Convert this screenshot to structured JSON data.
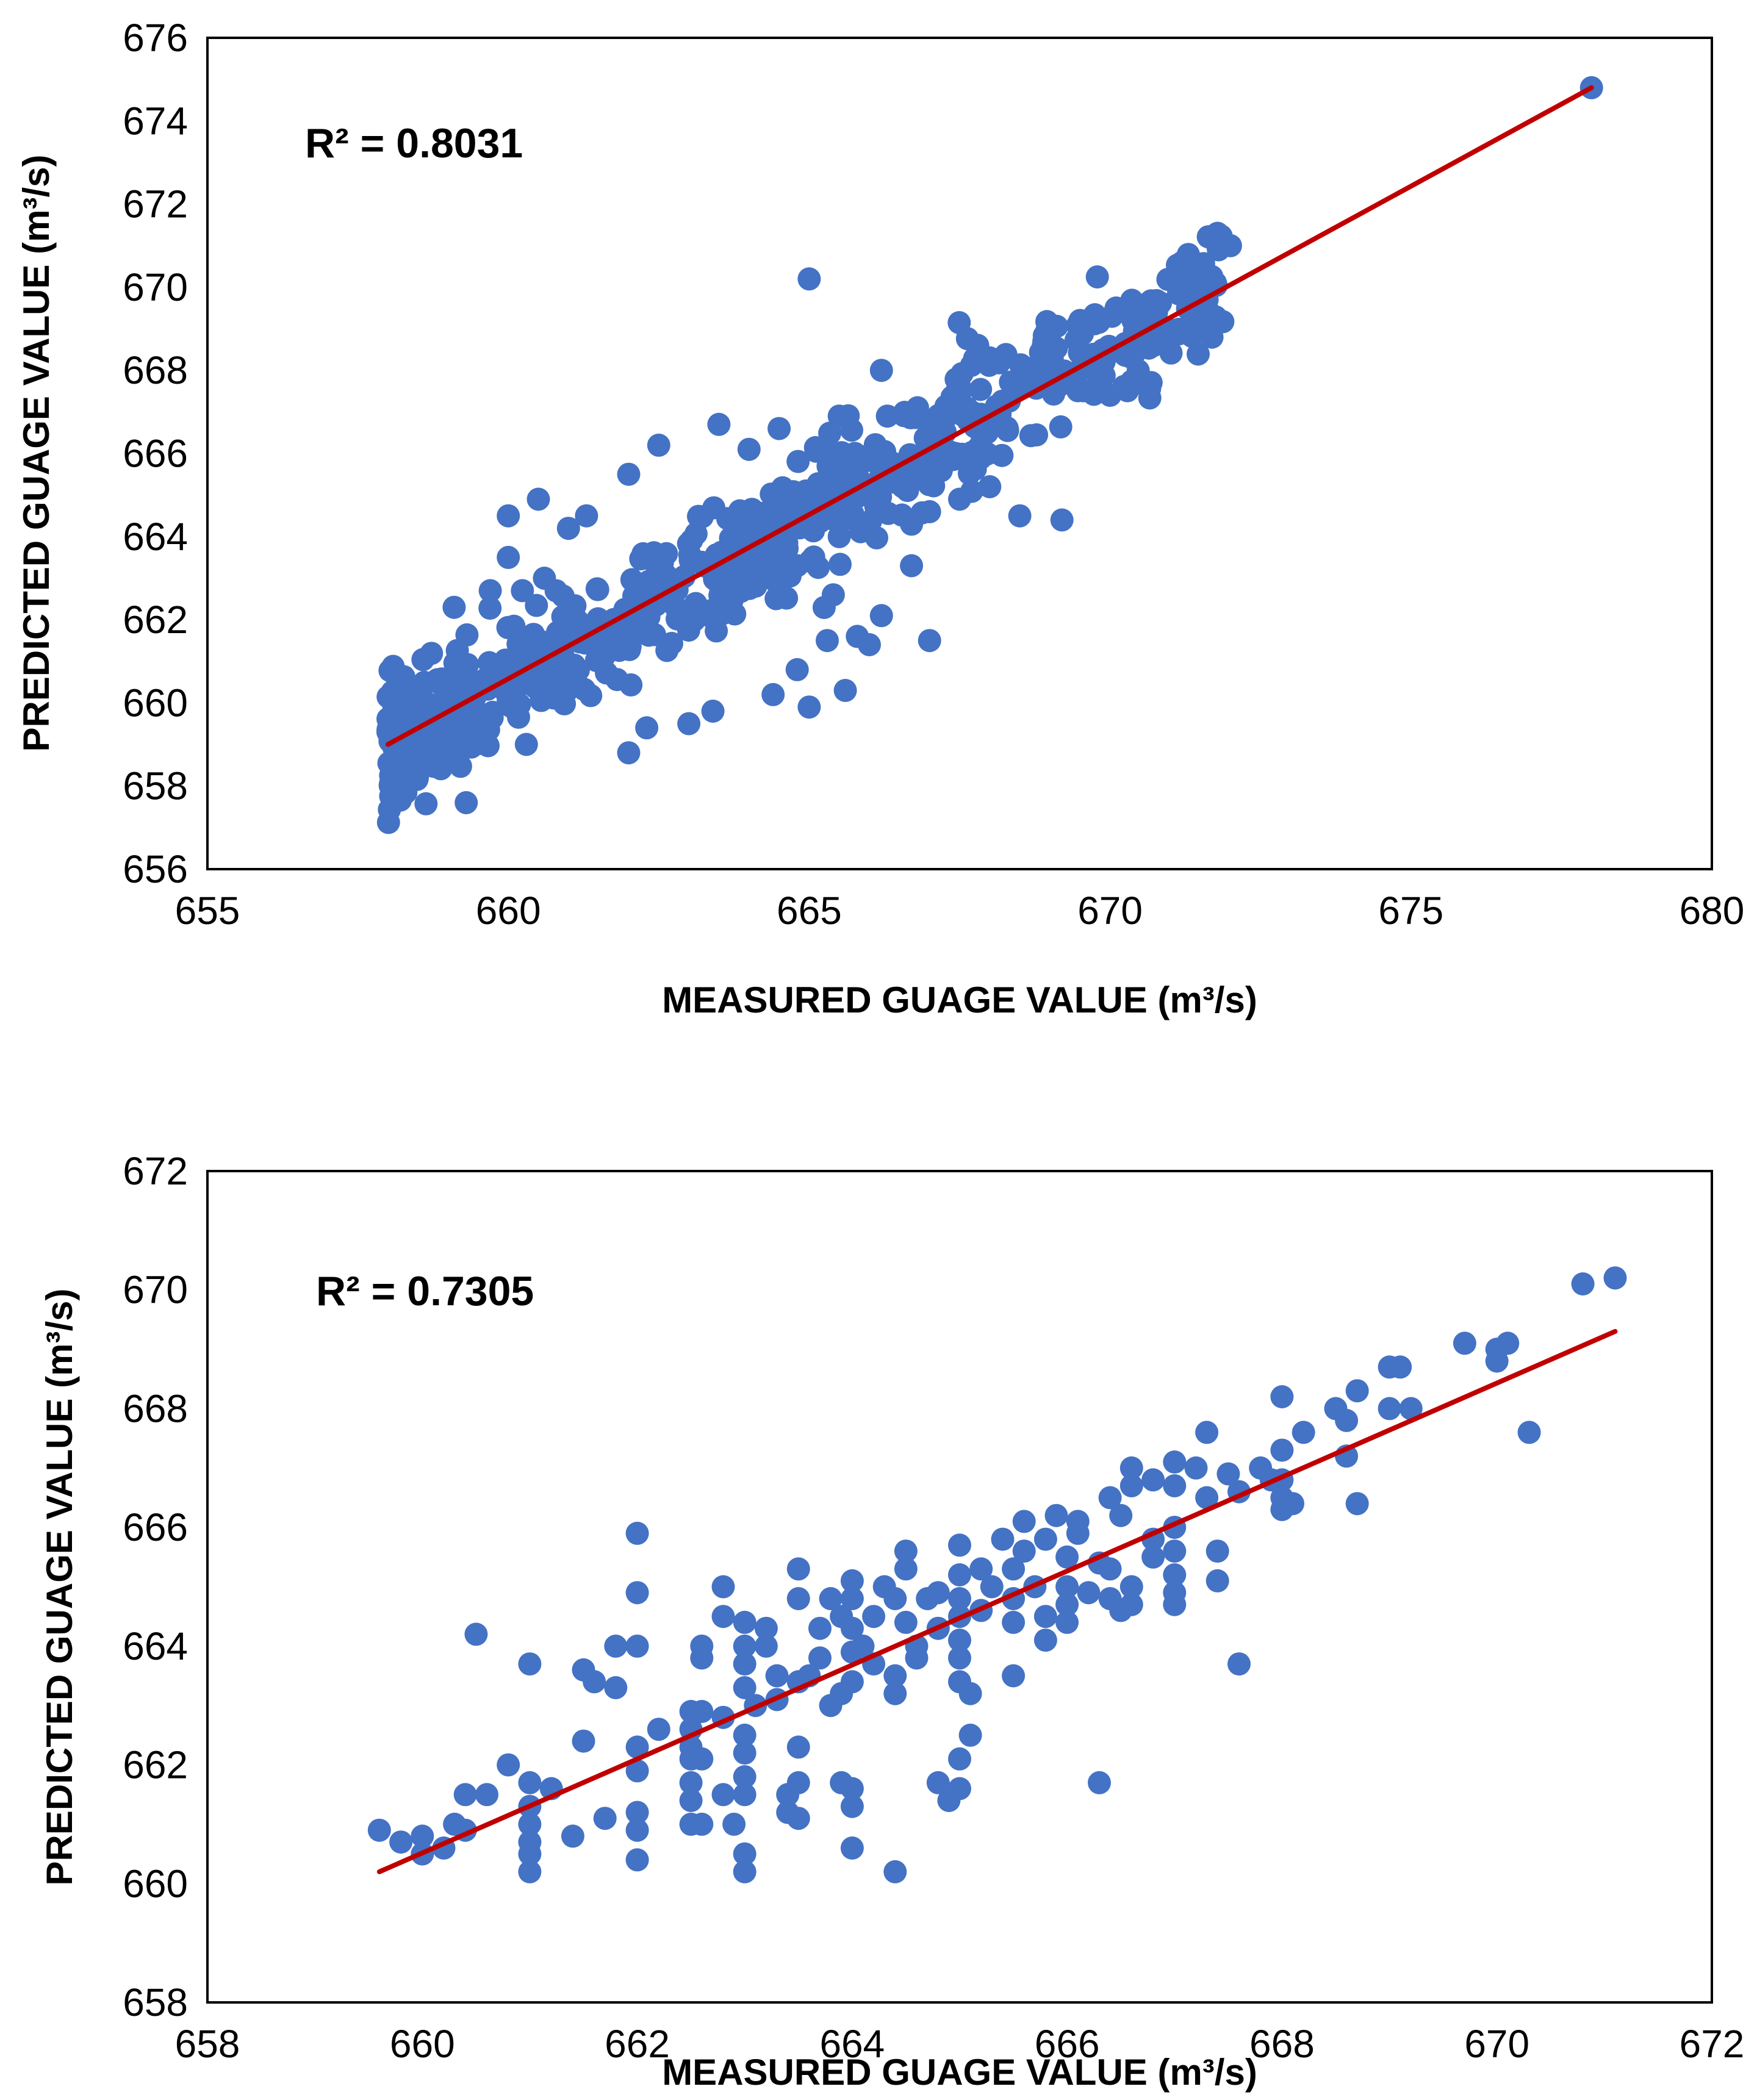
{
  "chart_data": [
    {
      "type": "scatter",
      "title": "",
      "xlabel": "MEASURED GUAGE VALUE (m³/s)",
      "ylabel": "PREDICTED GUAGE VALUE (m³/s)",
      "xlim": [
        655,
        680
      ],
      "ylim": [
        656,
        676
      ],
      "xticks": [
        655,
        660,
        665,
        670,
        675,
        680
      ],
      "yticks": [
        656,
        658,
        660,
        662,
        664,
        666,
        668,
        670,
        672,
        674,
        676
      ],
      "r2_label": "R² = 0.8031",
      "trendline": {
        "x": [
          658.0,
          678.0
        ],
        "y": [
          659.0,
          674.8
        ]
      },
      "colors": {
        "points": "#4472C4",
        "trendline": "#C00000"
      },
      "grid": false,
      "cluster": {
        "n": 700,
        "x_range": [
          658.0,
          672.0
        ],
        "slope": 0.79,
        "intercept": 659.0,
        "x0": 658.0,
        "spread": 0.75,
        "seed": 7
      },
      "points": [
        [
          678.0,
          674.8
        ],
        [
          665.0,
          670.2
        ],
        [
          659.3,
          657.6
        ],
        [
          662.0,
          658.8
        ],
        [
          666.2,
          668.0
        ],
        [
          660.0,
          664.5
        ],
        [
          660.5,
          664.9
        ],
        [
          661.3,
          664.5
        ],
        [
          662.0,
          665.5
        ],
        [
          662.5,
          666.2
        ],
        [
          663.5,
          666.7
        ],
        [
          664.5,
          666.6
        ],
        [
          665.5,
          666.9
        ],
        [
          667.8,
          668.6
        ],
        [
          667.0,
          661.5
        ],
        [
          666.0,
          661.4
        ],
        [
          666.2,
          662.1
        ],
        [
          665.6,
          660.3
        ],
        [
          665.0,
          659.9
        ],
        [
          664.8,
          660.8
        ],
        [
          664.4,
          660.2
        ],
        [
          662.3,
          659.4
        ],
        [
          663.0,
          659.5
        ],
        [
          663.4,
          659.8
        ],
        [
          660.3,
          659.0
        ],
        [
          659.2,
          658.9
        ],
        [
          658.8,
          658.7
        ],
        [
          665.3,
          661.5
        ],
        [
          665.8,
          661.6
        ],
        [
          666.7,
          663.3
        ],
        [
          668.5,
          664.5
        ],
        [
          669.2,
          664.4
        ],
        [
          670.0,
          667.4
        ],
        [
          670.4,
          668.4
        ],
        [
          671.4,
          668.9
        ],
        [
          671.6,
          669.0
        ],
        [
          672.0,
          671.0
        ],
        [
          671.8,
          670.9
        ],
        [
          671.2,
          670.6
        ],
        [
          670.1,
          669.5
        ],
        [
          669.5,
          669.2
        ],
        [
          668.9,
          668.7
        ],
        [
          668.0,
          668.3
        ],
        [
          667.5,
          667.6
        ],
        [
          666.8,
          667.1
        ],
        [
          666.3,
          666.9
        ],
        [
          664.0,
          666.1
        ],
        [
          661.0,
          664.2
        ],
        [
          659.7,
          662.7
        ],
        [
          659.1,
          662.3
        ],
        [
          658.0,
          659.3
        ],
        [
          658.1,
          659.9
        ],
        [
          658.5,
          659.5
        ],
        [
          660.0,
          663.5
        ],
        [
          660.6,
          663.0
        ],
        [
          664.8,
          663.3
        ],
        [
          665.4,
          662.6
        ],
        [
          665.5,
          664.0
        ],
        [
          666.7,
          664.3
        ],
        [
          667.0,
          664.6
        ],
        [
          667.5,
          664.9
        ],
        [
          668.0,
          665.2
        ],
        [
          670.9,
          668.9
        ],
        [
          671.6,
          669.4
        ],
        [
          671.4,
          669.9
        ]
      ]
    },
    {
      "type": "scatter",
      "title": "",
      "xlabel": "MEASURED GUAGE VALUE (m³/s)",
      "ylabel": "PREDICTED GUAGE VALUE (m³/s)",
      "xlim": [
        658,
        672
      ],
      "ylim": [
        658,
        672
      ],
      "xticks": [
        658,
        660,
        662,
        664,
        666,
        668,
        670,
        672
      ],
      "yticks": [
        658,
        660,
        662,
        664,
        666,
        668,
        670,
        672
      ],
      "r2_label": "R² = 0.7305",
      "trendline": {
        "x": [
          659.6,
          671.1
        ],
        "y": [
          660.2,
          669.3
        ]
      },
      "colors": {
        "points": "#4472C4",
        "trendline": "#C00000"
      },
      "grid": false,
      "points": [
        [
          659.6,
          660.9
        ],
        [
          659.8,
          660.7
        ],
        [
          660.0,
          660.5
        ],
        [
          660.0,
          660.8
        ],
        [
          660.2,
          660.6
        ],
        [
          660.3,
          661.0
        ],
        [
          660.4,
          661.5
        ],
        [
          660.6,
          661.5
        ],
        [
          660.4,
          660.9
        ],
        [
          660.5,
          664.2
        ],
        [
          660.8,
          662.0
        ],
        [
          661.0,
          661.7
        ],
        [
          661.0,
          661.3
        ],
        [
          661.0,
          661.0
        ],
        [
          661.0,
          660.7
        ],
        [
          661.0,
          660.5
        ],
        [
          661.0,
          660.2
        ],
        [
          661.0,
          663.7
        ],
        [
          661.2,
          661.6
        ],
        [
          661.4,
          660.8
        ],
        [
          661.5,
          662.4
        ],
        [
          661.5,
          663.6
        ],
        [
          661.6,
          663.4
        ],
        [
          661.7,
          661.1
        ],
        [
          661.8,
          663.3
        ],
        [
          661.8,
          664.0
        ],
        [
          662.0,
          664.0
        ],
        [
          662.0,
          664.9
        ],
        [
          662.0,
          665.9
        ],
        [
          662.0,
          662.3
        ],
        [
          662.0,
          661.9
        ],
        [
          662.0,
          661.2
        ],
        [
          662.0,
          660.9
        ],
        [
          662.0,
          660.4
        ],
        [
          662.2,
          662.6
        ],
        [
          662.5,
          662.9
        ],
        [
          662.5,
          662.6
        ],
        [
          662.5,
          662.3
        ],
        [
          662.5,
          662.1
        ],
        [
          662.5,
          661.7
        ],
        [
          662.5,
          661.4
        ],
        [
          662.5,
          661.0
        ],
        [
          662.6,
          663.8
        ],
        [
          662.6,
          664.0
        ],
        [
          662.6,
          662.9
        ],
        [
          662.6,
          662.1
        ],
        [
          662.6,
          661.0
        ],
        [
          662.8,
          665.0
        ],
        [
          662.8,
          664.5
        ],
        [
          662.8,
          662.8
        ],
        [
          662.8,
          661.5
        ],
        [
          662.9,
          661.0
        ],
        [
          663.0,
          664.4
        ],
        [
          663.0,
          664.0
        ],
        [
          663.0,
          663.7
        ],
        [
          663.0,
          663.3
        ],
        [
          663.0,
          662.5
        ],
        [
          663.0,
          662.2
        ],
        [
          663.0,
          661.8
        ],
        [
          663.0,
          661.5
        ],
        [
          663.0,
          660.5
        ],
        [
          663.0,
          660.2
        ],
        [
          663.1,
          663.0
        ],
        [
          663.2,
          664.0
        ],
        [
          663.2,
          664.3
        ],
        [
          663.3,
          663.1
        ],
        [
          663.3,
          663.5
        ],
        [
          663.4,
          661.5
        ],
        [
          663.4,
          661.2
        ],
        [
          663.5,
          663.4
        ],
        [
          663.5,
          664.8
        ],
        [
          663.5,
          665.3
        ],
        [
          663.5,
          662.3
        ],
        [
          663.5,
          661.7
        ],
        [
          663.5,
          661.1
        ],
        [
          663.6,
          663.5
        ],
        [
          663.7,
          664.3
        ],
        [
          663.7,
          663.8
        ],
        [
          663.8,
          663.0
        ],
        [
          663.8,
          664.8
        ],
        [
          663.9,
          664.5
        ],
        [
          663.9,
          663.2
        ],
        [
          664.0,
          665.1
        ],
        [
          664.0,
          664.8
        ],
        [
          664.0,
          664.3
        ],
        [
          664.0,
          663.9
        ],
        [
          664.0,
          663.4
        ],
        [
          664.0,
          661.6
        ],
        [
          664.0,
          661.3
        ],
        [
          664.0,
          660.6
        ],
        [
          663.9,
          661.7
        ],
        [
          664.1,
          664.0
        ],
        [
          664.2,
          664.5
        ],
        [
          664.2,
          663.7
        ],
        [
          664.3,
          665.0
        ],
        [
          664.4,
          664.8
        ],
        [
          664.4,
          663.5
        ],
        [
          664.4,
          663.2
        ],
        [
          664.4,
          660.2
        ],
        [
          664.5,
          665.3
        ],
        [
          664.5,
          665.6
        ],
        [
          664.5,
          664.4
        ],
        [
          664.6,
          664.0
        ],
        [
          664.6,
          663.8
        ],
        [
          664.7,
          664.8
        ],
        [
          664.8,
          664.3
        ],
        [
          664.8,
          664.9
        ],
        [
          664.8,
          661.7
        ],
        [
          664.9,
          661.4
        ],
        [
          665.0,
          665.7
        ],
        [
          665.0,
          665.2
        ],
        [
          665.0,
          664.8
        ],
        [
          665.0,
          664.5
        ],
        [
          665.0,
          664.1
        ],
        [
          665.0,
          663.8
        ],
        [
          665.0,
          663.4
        ],
        [
          665.0,
          662.1
        ],
        [
          665.0,
          661.6
        ],
        [
          665.1,
          663.2
        ],
        [
          665.1,
          662.5
        ],
        [
          665.2,
          665.3
        ],
        [
          665.2,
          664.6
        ],
        [
          665.3,
          665.0
        ],
        [
          665.4,
          665.8
        ],
        [
          665.5,
          665.3
        ],
        [
          665.5,
          664.8
        ],
        [
          665.5,
          664.4
        ],
        [
          665.5,
          663.5
        ],
        [
          665.6,
          665.6
        ],
        [
          665.6,
          666.1
        ],
        [
          665.7,
          665.0
        ],
        [
          665.8,
          665.8
        ],
        [
          665.8,
          664.5
        ],
        [
          665.8,
          664.1
        ],
        [
          665.9,
          666.2
        ],
        [
          666.0,
          665.5
        ],
        [
          666.0,
          665.0
        ],
        [
          666.0,
          664.7
        ],
        [
          666.0,
          664.4
        ],
        [
          666.1,
          666.1
        ],
        [
          666.1,
          665.9
        ],
        [
          666.2,
          664.9
        ],
        [
          666.3,
          665.4
        ],
        [
          666.3,
          661.7
        ],
        [
          666.4,
          666.5
        ],
        [
          666.4,
          665.3
        ],
        [
          666.4,
          664.8
        ],
        [
          666.5,
          666.2
        ],
        [
          666.5,
          664.6
        ],
        [
          666.6,
          667.0
        ],
        [
          666.6,
          666.7
        ],
        [
          666.6,
          665.0
        ],
        [
          666.6,
          664.7
        ],
        [
          666.8,
          666.8
        ],
        [
          666.8,
          665.5
        ],
        [
          666.8,
          665.8
        ],
        [
          667.0,
          667.1
        ],
        [
          667.0,
          666.7
        ],
        [
          667.0,
          666.0
        ],
        [
          667.0,
          665.6
        ],
        [
          667.0,
          665.2
        ],
        [
          667.0,
          664.9
        ],
        [
          667.0,
          664.7
        ],
        [
          667.2,
          667.0
        ],
        [
          667.3,
          667.6
        ],
        [
          667.3,
          666.5
        ],
        [
          667.4,
          665.6
        ],
        [
          667.4,
          665.1
        ],
        [
          667.5,
          666.9
        ],
        [
          667.6,
          666.6
        ],
        [
          667.6,
          663.7
        ],
        [
          667.8,
          667.0
        ],
        [
          667.9,
          666.8
        ],
        [
          668.0,
          668.2
        ],
        [
          668.0,
          667.3
        ],
        [
          668.0,
          666.8
        ],
        [
          668.0,
          666.5
        ],
        [
          668.0,
          666.3
        ],
        [
          668.1,
          666.4
        ],
        [
          668.2,
          667.6
        ],
        [
          668.5,
          668.0
        ],
        [
          668.6,
          667.8
        ],
        [
          668.6,
          667.2
        ],
        [
          668.7,
          668.3
        ],
        [
          668.7,
          666.4
        ],
        [
          669.0,
          668.7
        ],
        [
          669.0,
          668.0
        ],
        [
          669.1,
          668.7
        ],
        [
          669.2,
          668.0
        ],
        [
          669.7,
          669.1
        ],
        [
          670.0,
          669.0
        ],
        [
          670.0,
          668.8
        ],
        [
          670.1,
          669.1
        ],
        [
          670.3,
          667.6
        ],
        [
          670.8,
          670.1
        ],
        [
          671.1,
          670.2
        ]
      ]
    }
  ]
}
